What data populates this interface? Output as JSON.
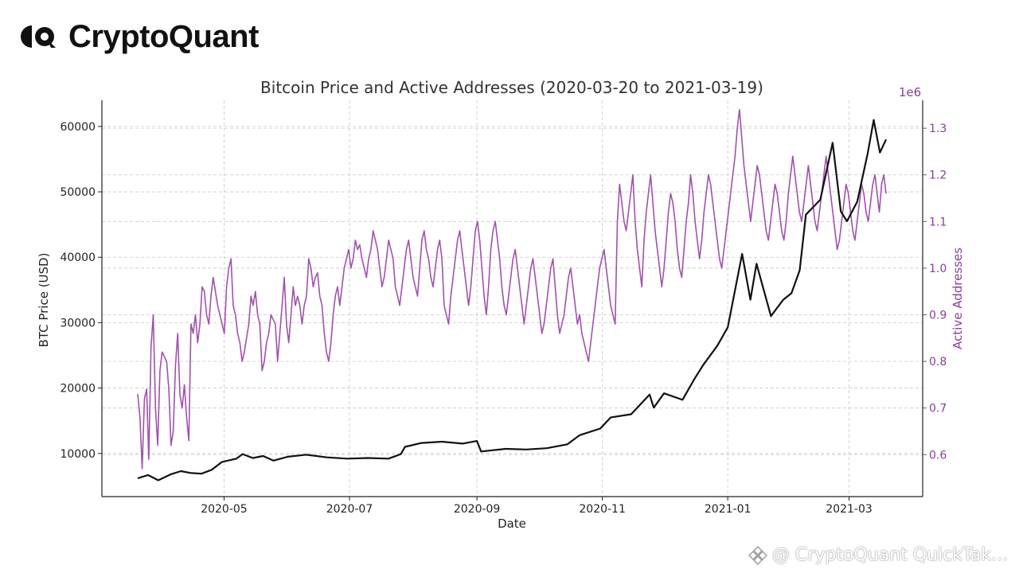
{
  "brand": {
    "name": "CryptoQuant"
  },
  "watermark": {
    "text": "@ CryptoQuant QuickTak..."
  },
  "colors": {
    "price": "#111111",
    "addresses": "#a052ac",
    "right_axis": "#8b3d9a",
    "grid": "#c8c8c8"
  },
  "chart_data": {
    "type": "line",
    "title": "Bitcoin Price and Active Addresses (2020-03-20 to 2021-03-19)",
    "xlabel": "Date",
    "ylabel_left": "BTC Price (USD)",
    "ylabel_right": "Active Addresses",
    "right_axis_multiplier": "1e6",
    "x_range": [
      "2020-03-20",
      "2021-03-19"
    ],
    "x_ticks": [
      "2020-05",
      "2020-07",
      "2020-09",
      "2020-11",
      "2021-01",
      "2021-03"
    ],
    "y_left_ticks": [
      10000,
      20000,
      30000,
      40000,
      50000,
      60000
    ],
    "y_right_ticks": [
      0.6,
      0.7,
      0.8,
      0.9,
      1.0,
      1.1,
      1.2,
      1.3
    ],
    "ylim_left": [
      3400,
      64000
    ],
    "ylim_right": [
      0.51,
      1.36
    ],
    "grid": true,
    "series": [
      {
        "name": "BTC Price (USD)",
        "axis": "left",
        "points": [
          [
            "2020-03-20",
            6200
          ],
          [
            "2020-03-25",
            6700
          ],
          [
            "2020-03-30",
            5900
          ],
          [
            "2020-04-05",
            6800
          ],
          [
            "2020-04-10",
            7300
          ],
          [
            "2020-04-15",
            7000
          ],
          [
            "2020-04-20",
            6900
          ],
          [
            "2020-04-25",
            7500
          ],
          [
            "2020-04-30",
            8700
          ],
          [
            "2020-05-07",
            9200
          ],
          [
            "2020-05-10",
            9900
          ],
          [
            "2020-05-15",
            9300
          ],
          [
            "2020-05-20",
            9600
          ],
          [
            "2020-05-25",
            8900
          ],
          [
            "2020-06-01",
            9500
          ],
          [
            "2020-06-10",
            9800
          ],
          [
            "2020-06-20",
            9400
          ],
          [
            "2020-06-30",
            9200
          ],
          [
            "2020-07-10",
            9300
          ],
          [
            "2020-07-20",
            9200
          ],
          [
            "2020-07-26",
            9900
          ],
          [
            "2020-07-28",
            11000
          ],
          [
            "2020-08-05",
            11600
          ],
          [
            "2020-08-15",
            11800
          ],
          [
            "2020-08-25",
            11500
          ],
          [
            "2020-09-01",
            11900
          ],
          [
            "2020-09-03",
            10300
          ],
          [
            "2020-09-15",
            10700
          ],
          [
            "2020-09-25",
            10600
          ],
          [
            "2020-10-05",
            10800
          ],
          [
            "2020-10-15",
            11400
          ],
          [
            "2020-10-21",
            12800
          ],
          [
            "2020-10-31",
            13800
          ],
          [
            "2020-11-05",
            15500
          ],
          [
            "2020-11-15",
            16000
          ],
          [
            "2020-11-24",
            19000
          ],
          [
            "2020-11-26",
            17000
          ],
          [
            "2020-12-01",
            19200
          ],
          [
            "2020-12-10",
            18200
          ],
          [
            "2020-12-16",
            21500
          ],
          [
            "2020-12-20",
            23500
          ],
          [
            "2020-12-27",
            26500
          ],
          [
            "2021-01-01",
            29300
          ],
          [
            "2021-01-08",
            40500
          ],
          [
            "2021-01-12",
            33500
          ],
          [
            "2021-01-15",
            39000
          ],
          [
            "2021-01-22",
            31000
          ],
          [
            "2021-01-28",
            33500
          ],
          [
            "2021-02-01",
            34500
          ],
          [
            "2021-02-05",
            38000
          ],
          [
            "2021-02-08",
            46500
          ],
          [
            "2021-02-15",
            48800
          ],
          [
            "2021-02-21",
            57500
          ],
          [
            "2021-02-25",
            47000
          ],
          [
            "2021-02-28",
            45500
          ],
          [
            "2021-03-05",
            48500
          ],
          [
            "2021-03-10",
            55800
          ],
          [
            "2021-03-13",
            61000
          ],
          [
            "2021-03-16",
            56000
          ],
          [
            "2021-03-19",
            58000
          ]
        ]
      },
      {
        "name": "Active Addresses",
        "axis": "right",
        "start_date": "2020-03-20",
        "end_date": "2021-03-19",
        "values": [
          0.73,
          0.68,
          0.57,
          0.72,
          0.74,
          0.59,
          0.83,
          0.9,
          0.7,
          0.62,
          0.78,
          0.82,
          0.81,
          0.8,
          0.74,
          0.62,
          0.65,
          0.79,
          0.86,
          0.73,
          0.7,
          0.75,
          0.68,
          0.63,
          0.88,
          0.86,
          0.9,
          0.84,
          0.88,
          0.96,
          0.95,
          0.9,
          0.88,
          0.94,
          0.98,
          0.95,
          0.92,
          0.9,
          0.88,
          0.86,
          0.96,
          1.0,
          1.02,
          0.92,
          0.9,
          0.86,
          0.84,
          0.8,
          0.82,
          0.85,
          0.88,
          0.94,
          0.92,
          0.95,
          0.9,
          0.88,
          0.78,
          0.8,
          0.84,
          0.86,
          0.9,
          0.89,
          0.88,
          0.8,
          0.86,
          0.92,
          0.98,
          0.88,
          0.84,
          0.9,
          0.96,
          0.92,
          0.94,
          0.92,
          0.88,
          0.92,
          0.94,
          1.02,
          1.0,
          0.96,
          0.98,
          0.99,
          0.94,
          0.92,
          0.86,
          0.82,
          0.8,
          0.84,
          0.9,
          0.94,
          0.96,
          0.92,
          0.96,
          1.0,
          1.02,
          1.04,
          1.0,
          1.02,
          1.06,
          1.04,
          1.05,
          1.02,
          1.0,
          0.98,
          1.02,
          1.04,
          1.08,
          1.06,
          1.04,
          1.0,
          0.96,
          0.98,
          1.02,
          1.06,
          1.04,
          1.02,
          0.96,
          0.94,
          0.92,
          0.96,
          1.0,
          1.04,
          1.06,
          1.02,
          0.98,
          0.96,
          0.94,
          1.0,
          1.06,
          1.08,
          1.04,
          1.02,
          0.98,
          0.96,
          1.0,
          1.04,
          1.06,
          1.02,
          0.92,
          0.9,
          0.88,
          0.94,
          0.98,
          1.02,
          1.06,
          1.08,
          1.04,
          1.0,
          0.96,
          0.92,
          0.96,
          1.02,
          1.08,
          1.1,
          1.06,
          1.0,
          0.94,
          0.9,
          0.96,
          1.04,
          1.08,
          1.1,
          1.06,
          1.02,
          0.96,
          0.92,
          0.9,
          0.94,
          0.98,
          1.02,
          1.04,
          1.0,
          0.96,
          0.92,
          0.88,
          0.92,
          0.96,
          1.0,
          1.02,
          0.98,
          0.94,
          0.9,
          0.86,
          0.88,
          0.92,
          0.96,
          1.0,
          1.02,
          0.96,
          0.9,
          0.86,
          0.88,
          0.9,
          0.94,
          0.98,
          1.0,
          0.96,
          0.92,
          0.88,
          0.9,
          0.86,
          0.84,
          0.82,
          0.8,
          0.84,
          0.88,
          0.92,
          0.96,
          1.0,
          1.02,
          1.04,
          1.0,
          0.96,
          0.92,
          0.9,
          0.88,
          1.1,
          1.18,
          1.14,
          1.1,
          1.08,
          1.12,
          1.16,
          1.2,
          1.1,
          1.04,
          1.0,
          0.96,
          1.06,
          1.12,
          1.16,
          1.2,
          1.14,
          1.08,
          1.04,
          1.0,
          0.96,
          1.0,
          1.06,
          1.12,
          1.16,
          1.14,
          1.1,
          1.04,
          1.0,
          0.98,
          1.04,
          1.1,
          1.14,
          1.2,
          1.16,
          1.1,
          1.06,
          1.02,
          1.06,
          1.12,
          1.16,
          1.2,
          1.18,
          1.14,
          1.1,
          1.06,
          1.02,
          1.0,
          1.04,
          1.08,
          1.12,
          1.16,
          1.2,
          1.24,
          1.3,
          1.34,
          1.28,
          1.22,
          1.18,
          1.14,
          1.1,
          1.14,
          1.18,
          1.22,
          1.2,
          1.16,
          1.12,
          1.08,
          1.06,
          1.1,
          1.14,
          1.18,
          1.16,
          1.12,
          1.08,
          1.06,
          1.1,
          1.16,
          1.2,
          1.24,
          1.2,
          1.16,
          1.12,
          1.1,
          1.14,
          1.18,
          1.22,
          1.18,
          1.14,
          1.1,
          1.08,
          1.12,
          1.16,
          1.2,
          1.24,
          1.2,
          1.16,
          1.12,
          1.08,
          1.04,
          1.06,
          1.1,
          1.14,
          1.18,
          1.16,
          1.12,
          1.08,
          1.06,
          1.1,
          1.14,
          1.18,
          1.16,
          1.12,
          1.1,
          1.14,
          1.18,
          1.2,
          1.16,
          1.12,
          1.18,
          1.2,
          1.16
        ]
      }
    ]
  }
}
